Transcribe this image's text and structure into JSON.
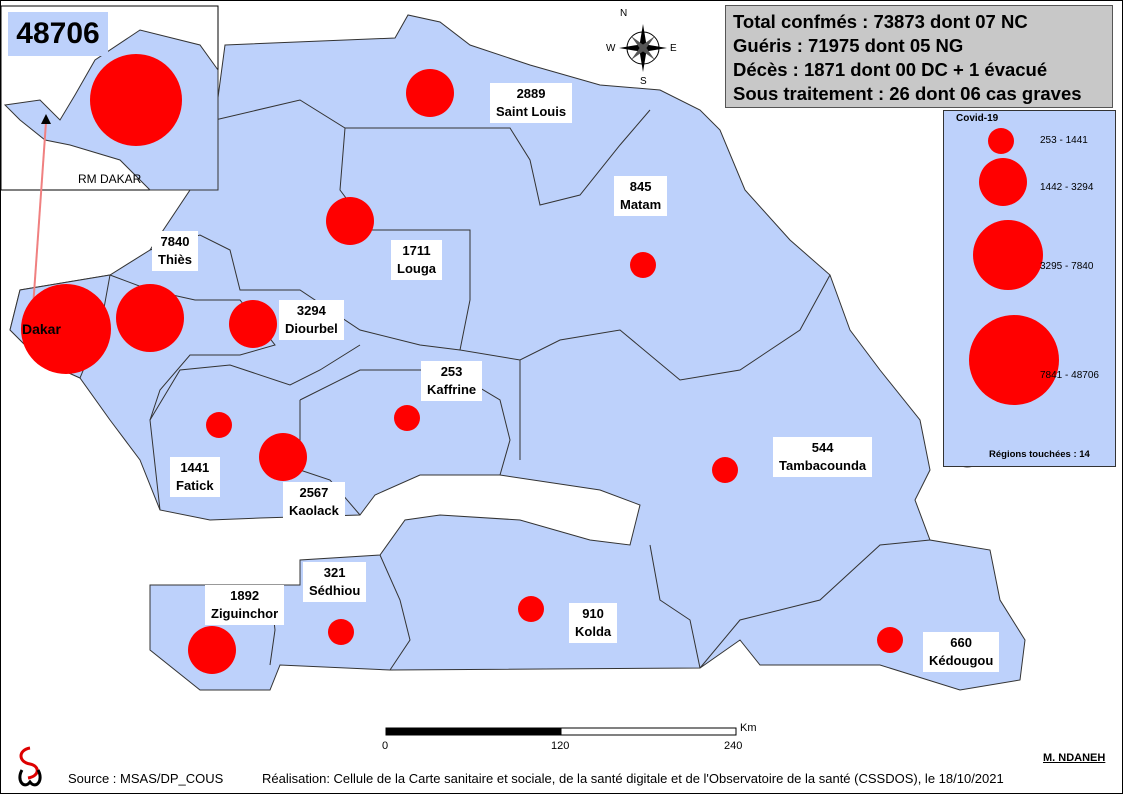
{
  "title_total": "48706",
  "inset": {
    "label": "RM DAKAR"
  },
  "stats": {
    "line1": "Total confmés : 73873 dont 07 NC",
    "line2": "Guéris : 71975 dont 05 NG",
    "line3": "Décès : 1871 dont 00 DC + 1 évacué",
    "line4": "Sous traitement : 26 dont 06 cas graves"
  },
  "compass": {
    "n": "N",
    "s": "S",
    "e": "E",
    "w": "W"
  },
  "regions": [
    {
      "name": "Dakar",
      "cases": "48706"
    },
    {
      "name": "Thiès",
      "cases": "7840"
    },
    {
      "name": "Diourbel",
      "cases": "3294"
    },
    {
      "name": "Louga",
      "cases": "1711"
    },
    {
      "name": "Saint Louis",
      "cases": "2889"
    },
    {
      "name": "Matam",
      "cases": "845"
    },
    {
      "name": "Kaffrine",
      "cases": "253"
    },
    {
      "name": "Fatick",
      "cases": "1441"
    },
    {
      "name": "Kaolack",
      "cases": "2567"
    },
    {
      "name": "Tambacounda",
      "cases": "544"
    },
    {
      "name": "Ziguinchor",
      "cases": "1892"
    },
    {
      "name": "Sédhiou",
      "cases": "321"
    },
    {
      "name": "Kolda",
      "cases": "910"
    },
    {
      "name": "Kédougou",
      "cases": "660"
    }
  ],
  "legend": {
    "title": "Covid-19",
    "classes": [
      "253 - 1441",
      "1442 - 3294",
      "3295 - 7840",
      "7841 - 48706"
    ],
    "regions_label": "Régions touchées : 14"
  },
  "scale": {
    "unit": "Km",
    "ticks": [
      "0",
      "120",
      "240"
    ]
  },
  "author": "M. NDANEH",
  "source": "Source : MSAS/DP_COUS",
  "credit": "Réalisation: Cellule de la Carte sanitaire et sociale, de la santé digitale et de l'Observatoire de la santé (CSSDOS), le 18/10/2021",
  "colors": {
    "land": "#bdd1fb",
    "bubble": "#ff0000",
    "stats_bg": "#c8c8c8"
  }
}
